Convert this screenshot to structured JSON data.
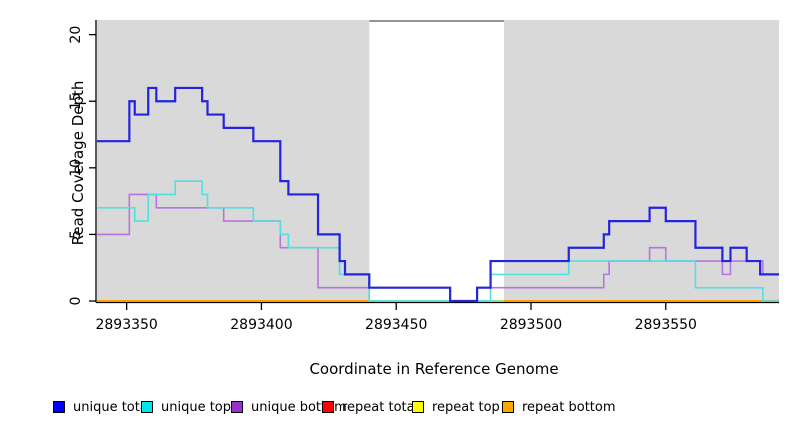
{
  "chart_data": {
    "type": "line",
    "subtype": "step",
    "title": "",
    "xlabel": "Coordinate in Reference Genome",
    "ylabel": "Read Coverage Depth",
    "xlim": [
      2893339,
      2893592
    ],
    "ylim": [
      0,
      21.1
    ],
    "x_ticks": [
      "2893350",
      "2893400",
      "2893450",
      "2893500",
      "2893550"
    ],
    "x_tick_values": [
      2893350,
      2893400,
      2893450,
      2893500,
      2893550
    ],
    "y_ticks": [
      "0",
      "5",
      "10",
      "15",
      "20"
    ],
    "y_tick_values": [
      0,
      5,
      10,
      15,
      20
    ],
    "grid": false,
    "plot_background": "#ffffff",
    "shaded_regions": [
      {
        "from": 2893339,
        "to": 2893440,
        "color": "#d9d9d9"
      },
      {
        "from": 2893490,
        "to": 2893592,
        "color": "#d9d9d9"
      }
    ],
    "gap_region": {
      "from": 2893440,
      "to": 2893490,
      "color": "#ffffff"
    },
    "series": [
      {
        "name": "repeat total",
        "color": "#ff0000",
        "width": 1.4,
        "points": [
          [
            2893339,
            0
          ]
        ],
        "end": 2893592
      },
      {
        "name": "repeat top",
        "color": "#ffff00",
        "width": 1.4,
        "points": [
          [
            2893339,
            0
          ]
        ],
        "end": 2893592
      },
      {
        "name": "gap zero line",
        "color": "#8fd8a0",
        "width": 1.8,
        "points": [
          [
            2893440,
            0
          ]
        ],
        "end": 2893490
      },
      {
        "name": "repeat bottom",
        "color": "#ff9d00",
        "width": 2,
        "points": [
          [
            2893339,
            0
          ]
        ],
        "end": 2893440
      },
      {
        "name": "repeat bottom",
        "color": "#ff9d00",
        "width": 2,
        "points": [
          [
            2893490,
            0
          ]
        ],
        "end": 2893592
      },
      {
        "name": "unique bottom",
        "color": "#b873e0",
        "width": 1.6,
        "points": [
          [
            2893339,
            5
          ],
          [
            2893351,
            8
          ],
          [
            2893361,
            7
          ],
          [
            2893386,
            6
          ],
          [
            2893407,
            4
          ],
          [
            2893421,
            1
          ],
          [
            2893470,
            0
          ],
          [
            2893480,
            1
          ],
          [
            2893527,
            2
          ],
          [
            2893529,
            3
          ],
          [
            2893544,
            4
          ],
          [
            2893550,
            3
          ],
          [
            2893571,
            2
          ],
          [
            2893574,
            3
          ],
          [
            2893586,
            2
          ]
        ],
        "end": 2893592
      },
      {
        "name": "unique top",
        "color": "#4fe0e0",
        "width": 1.6,
        "points": [
          [
            2893339,
            7
          ],
          [
            2893353,
            6
          ],
          [
            2893358,
            8
          ],
          [
            2893368,
            9
          ],
          [
            2893378,
            8
          ],
          [
            2893380,
            7
          ],
          [
            2893397,
            6
          ],
          [
            2893407,
            5
          ],
          [
            2893410,
            4
          ],
          [
            2893429,
            2
          ],
          [
            2893440,
            0
          ],
          [
            2893485,
            2
          ],
          [
            2893514,
            3
          ],
          [
            2893561,
            1
          ],
          [
            2893586,
            0
          ]
        ],
        "end": 2893592
      },
      {
        "name": "unique total",
        "color": "#2424e0",
        "width": 2.2,
        "points": [
          [
            2893339,
            12
          ],
          [
            2893351,
            15
          ],
          [
            2893353,
            14
          ],
          [
            2893358,
            16
          ],
          [
            2893361,
            15
          ],
          [
            2893368,
            16
          ],
          [
            2893378,
            15
          ],
          [
            2893380,
            14
          ],
          [
            2893386,
            13
          ],
          [
            2893397,
            12
          ],
          [
            2893407,
            9
          ],
          [
            2893410,
            8
          ],
          [
            2893421,
            5
          ],
          [
            2893429,
            3
          ],
          [
            2893431,
            2
          ],
          [
            2893440,
            1
          ],
          [
            2893470,
            0
          ],
          [
            2893480,
            1
          ],
          [
            2893485,
            3
          ],
          [
            2893514,
            4
          ],
          [
            2893527,
            5
          ],
          [
            2893529,
            6
          ],
          [
            2893544,
            7
          ],
          [
            2893550,
            6
          ],
          [
            2893561,
            4
          ],
          [
            2893571,
            3
          ],
          [
            2893574,
            4
          ],
          [
            2893580,
            3
          ],
          [
            2893585,
            2
          ]
        ],
        "end": 2893592
      }
    ],
    "legend": [
      {
        "label": "unique total",
        "color": "#0000ff"
      },
      {
        "label": "unique top",
        "color": "#00e5ee"
      },
      {
        "label": "unique bottom",
        "color": "#9b30d0"
      },
      {
        "label": "repeat total",
        "color": "#ff0000"
      },
      {
        "label": "repeat top",
        "color": "#ffff00"
      },
      {
        "label": "repeat bottom",
        "color": "#ffa500"
      }
    ],
    "legend_position": "bottom"
  }
}
